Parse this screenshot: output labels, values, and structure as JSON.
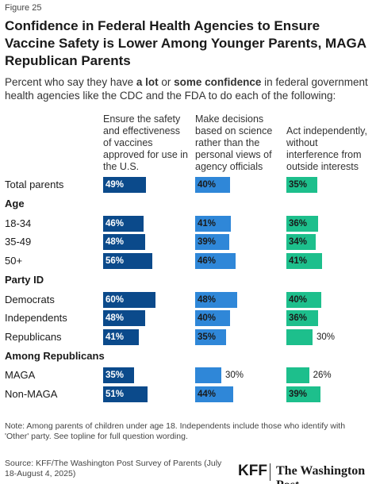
{
  "figure_label": "Figure 25",
  "chart_data": {
    "type": "bar",
    "title": "Confidence in Federal Health Agencies to Ensure Vaccine Safety is Lower Among Younger Parents, MAGA Republican Parents",
    "subtitle": [
      "Percent who say they have ",
      "a lot",
      " or ",
      "some confidence",
      " in federal government health agencies like the CDC and the FDA to do each of the following:"
    ],
    "categories": [
      "Total parents",
      "Age",
      "18-34",
      "35-49",
      "50+",
      "Party ID",
      "Democrats",
      "Independents",
      "Republicans",
      "Among Republicans",
      "MAGA",
      "Non-MAGA"
    ],
    "series": [
      {
        "name": "Ensure the safety and effectiveness of vaccines approved for use in the U.S.",
        "color": "#0b4a8b",
        "label_color": "#ffffff",
        "values": [
          49,
          null,
          46,
          48,
          56,
          null,
          60,
          48,
          41,
          null,
          35,
          51
        ],
        "value_labels": [
          "49%",
          null,
          "46%",
          "48%",
          "56%",
          null,
          "60%",
          "48%",
          "41%",
          null,
          "35%",
          "51%"
        ]
      },
      {
        "name": "Make decisions based on science rather than the personal views of agency officials",
        "color": "#2f87d8",
        "label_color": "#1a1a1a",
        "values": [
          40,
          null,
          41,
          39,
          46,
          null,
          48,
          40,
          35,
          null,
          30,
          44
        ],
        "value_labels": [
          "40%",
          null,
          "41%",
          "39%",
          "46%",
          null,
          "48%",
          "40%",
          "35%",
          null,
          "30%",
          "44%"
        ]
      },
      {
        "name": "Act independently, without interference from outside interests",
        "color": "#1dbf8c",
        "label_color": "#1a1a1a",
        "values": [
          35,
          null,
          36,
          34,
          41,
          null,
          40,
          36,
          30,
          null,
          26,
          39
        ],
        "value_labels": [
          "35%",
          null,
          "36%",
          "34%",
          "41%",
          null,
          "40%",
          "36%",
          "30%",
          null,
          "26%",
          "39%"
        ]
      }
    ]
  },
  "footer": {
    "note": "Note: Among parents of children under age 18. Independents include those who identify with 'Other' party. See topline for full question wording.",
    "source": "Source: KFF/The Washington Post Survey of Parents (July 18-August 4, 2025)",
    "logo_1": "KFF",
    "logo_2": "The Washington Post"
  }
}
